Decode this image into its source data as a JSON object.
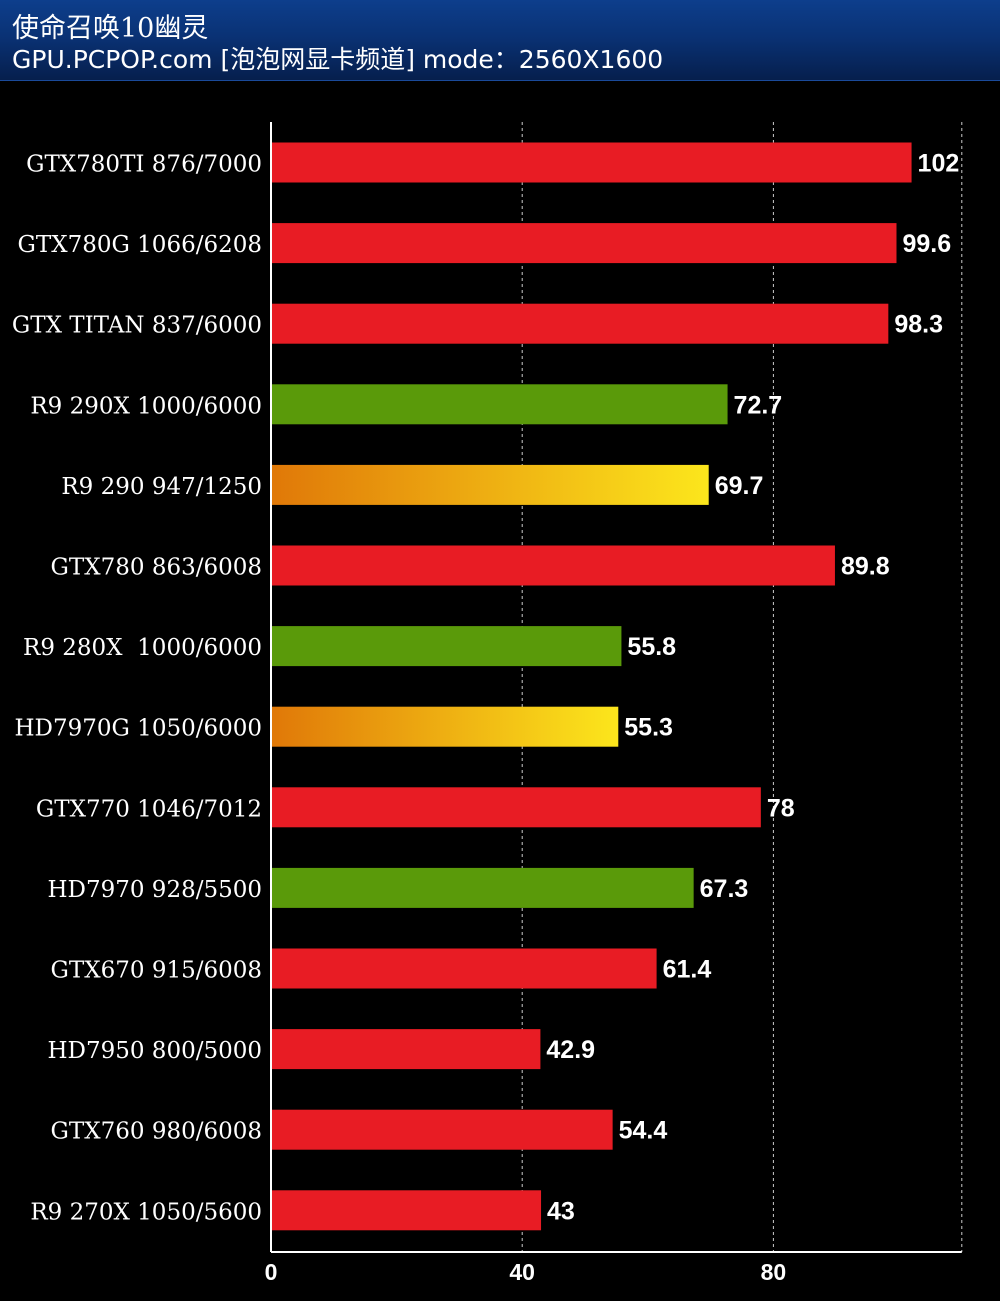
{
  "header": {
    "title": "使命召唤10幽灵",
    "subtitle": "GPU.PCPOP.com [泡泡网显卡频道] mode：2560X1600"
  },
  "colors": {
    "background": "#000000",
    "red": "#e81c24",
    "green": "#5a9a0a",
    "orange_start": "#e07808",
    "yellow_end": "#fce61c",
    "grid": "#ffffff",
    "text": "#ffffff"
  },
  "chart_data": {
    "type": "bar",
    "orientation": "horizontal",
    "categories": [
      "GTX780TI 876/7000",
      "GTX780G 1066/6208",
      "GTX TITAN 837/6000",
      "R9 290X 1000/6000",
      "R9 290 947/1250",
      "GTX780 863/6008",
      "R9 280X  1000/6000",
      "HD7970G 1050/6000",
      "GTX770 1046/7012",
      "HD7970 928/5500",
      "GTX670 915/6008",
      "HD7950 800/5000",
      "GTX760 980/6008",
      "R9 270X 1050/5600"
    ],
    "values": [
      102,
      99.6,
      98.3,
      72.7,
      69.7,
      89.8,
      55.8,
      55.3,
      78,
      67.3,
      61.4,
      42.9,
      54.4,
      43
    ],
    "value_labels": [
      "102",
      "99.6",
      "98.3",
      "72.7",
      "69.7",
      "89.8",
      "55.8",
      "55.3",
      "78",
      "67.3",
      "61.4",
      "42.9",
      "54.4",
      "43"
    ],
    "bar_colors": [
      "red",
      "red",
      "red",
      "green",
      "gradient",
      "red",
      "green",
      "gradient",
      "red",
      "green",
      "red",
      "red",
      "red",
      "red"
    ],
    "xticks": [
      0,
      40,
      80
    ],
    "xtick_labels": [
      "0",
      "40",
      "80"
    ],
    "xlim": [
      0,
      110
    ],
    "grid": true,
    "grid_style": "dashed-vertical"
  }
}
